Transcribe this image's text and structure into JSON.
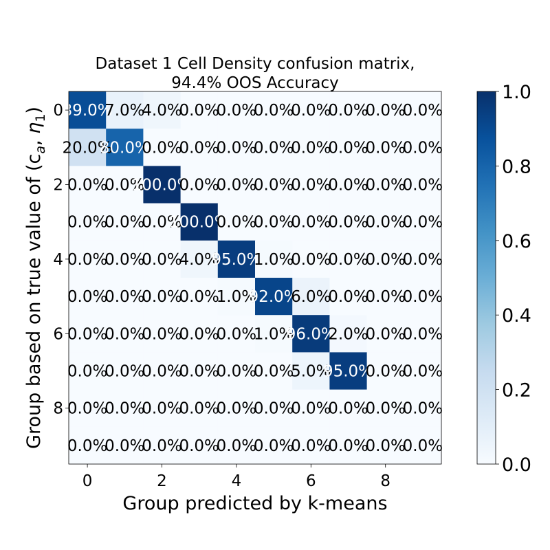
{
  "chart_data": {
    "type": "heatmap",
    "title_line1": "Dataset 1 Cell Density confusion matrix,",
    "title_line2": "94.4% OOS Accuracy",
    "xlabel": "Group predicted by k-means",
    "ylabel": "Group based on true value of (c",
    "ylabel_sub_a": "a",
    "ylabel_eta": "η",
    "ylabel_sub_1": "1",
    "ylabel_close": ")",
    "x_ticks": [
      "0",
      "2",
      "4",
      "6",
      "8"
    ],
    "y_ticks": [
      "0",
      "2",
      "4",
      "6",
      "8"
    ],
    "tick_positions": [
      0,
      2,
      4,
      6,
      8
    ],
    "n_classes": 10,
    "matrix": [
      [
        0.89,
        0.07,
        0.04,
        0.0,
        0.0,
        0.0,
        0.0,
        0.0,
        0.0,
        0.0
      ],
      [
        0.2,
        0.8,
        0.0,
        0.0,
        0.0,
        0.0,
        0.0,
        0.0,
        0.0,
        0.0
      ],
      [
        0.0,
        0.0,
        1.0,
        0.0,
        0.0,
        0.0,
        0.0,
        0.0,
        0.0,
        0.0
      ],
      [
        0.0,
        0.0,
        0.0,
        1.0,
        0.0,
        0.0,
        0.0,
        0.0,
        0.0,
        0.0
      ],
      [
        0.0,
        0.0,
        0.0,
        0.04,
        0.95,
        0.01,
        0.0,
        0.0,
        0.0,
        0.0
      ],
      [
        0.0,
        0.0,
        0.0,
        0.0,
        0.01,
        0.92,
        0.06,
        0.0,
        0.0,
        0.0
      ],
      [
        0.0,
        0.0,
        0.0,
        0.0,
        0.0,
        0.01,
        0.96,
        0.02,
        0.0,
        0.0
      ],
      [
        0.0,
        0.0,
        0.0,
        0.0,
        0.0,
        0.0,
        0.05,
        0.95,
        0.0,
        0.0
      ],
      [
        0.0,
        0.0,
        0.0,
        0.0,
        0.0,
        0.0,
        0.0,
        0.0,
        0.0,
        0.0
      ],
      [
        0.0,
        0.0,
        0.0,
        0.0,
        0.0,
        0.0,
        0.0,
        0.0,
        0.0,
        0.0
      ]
    ],
    "cell_labels": [
      [
        "89.0%",
        "7.0%",
        "4.0%",
        "0.0%",
        "0.0%",
        "0.0%",
        "0.0%",
        "0.0%",
        "0.0%",
        "0.0%"
      ],
      [
        "20.0%",
        "80.0%",
        "0.0%",
        "0.0%",
        "0.0%",
        "0.0%",
        "0.0%",
        "0.0%",
        "0.0%",
        "0.0%"
      ],
      [
        "0.0%",
        "0.0%",
        "100.0%",
        "0.0%",
        "0.0%",
        "0.0%",
        "0.0%",
        "0.0%",
        "0.0%",
        "0.0%"
      ],
      [
        "0.0%",
        "0.0%",
        "0.0%",
        "100.0%",
        "0.0%",
        "0.0%",
        "0.0%",
        "0.0%",
        "0.0%",
        "0.0%"
      ],
      [
        "0.0%",
        "0.0%",
        "0.0%",
        "4.0%",
        "95.0%",
        "1.0%",
        "0.0%",
        "0.0%",
        "0.0%",
        "0.0%"
      ],
      [
        "0.0%",
        "0.0%",
        "0.0%",
        "0.0%",
        "1.0%",
        "92.0%",
        "6.0%",
        "0.0%",
        "0.0%",
        "0.0%"
      ],
      [
        "0.0%",
        "0.0%",
        "0.0%",
        "0.0%",
        "0.0%",
        "1.0%",
        "96.0%",
        "2.0%",
        "0.0%",
        "0.0%"
      ],
      [
        "0.0%",
        "0.0%",
        "0.0%",
        "0.0%",
        "0.0%",
        "0.0%",
        "5.0%",
        "95.0%",
        "0.0%",
        "0.0%"
      ],
      [
        "0.0%",
        "0.0%",
        "0.0%",
        "0.0%",
        "0.0%",
        "0.0%",
        "0.0%",
        "0.0%",
        "0.0%",
        "0.0%"
      ],
      [
        "0.0%",
        "0.0%",
        "0.0%",
        "0.0%",
        "0.0%",
        "0.0%",
        "0.0%",
        "0.0%",
        "0.0%",
        "0.0%"
      ]
    ],
    "colorbar": {
      "min": 0.0,
      "max": 1.0,
      "ticks": [
        0.0,
        0.2,
        0.4,
        0.6,
        0.8,
        1.0
      ],
      "tick_labels": [
        "0.0",
        "0.2",
        "0.4",
        "0.6",
        "0.8",
        "1.0"
      ]
    },
    "colormap": "Blues",
    "colormap_stops": [
      "#f7fbff",
      "#deebf7",
      "#c6dbef",
      "#9ecae1",
      "#6baed6",
      "#4292c6",
      "#2171b5",
      "#08519c",
      "#08306b"
    ],
    "grid": false
  }
}
